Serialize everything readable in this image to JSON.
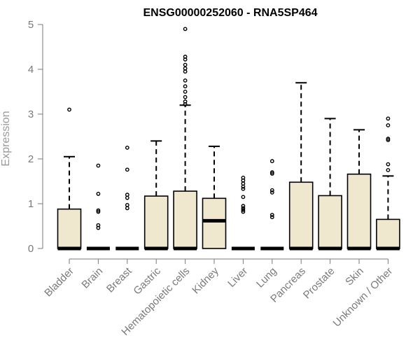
{
  "chart_data": {
    "type": "box",
    "title": "ENSG00000252060 - RNA5SP464",
    "xlabel": "",
    "ylabel": "Expression",
    "ylim": [
      0,
      5
    ],
    "yticks": [
      0,
      1,
      2,
      3,
      4,
      5
    ],
    "categories": [
      "Bladder",
      "Brain",
      "Breast",
      "Gastric",
      "Hematopoietic cells",
      "Kidney",
      "Liver",
      "Lung",
      "Pancreas",
      "Prostate",
      "Skin",
      "Unknown / Other"
    ],
    "boxes": [
      {
        "category": "Bladder",
        "q1": 0,
        "median": 0,
        "q3": 0.88,
        "whisker_low": 0,
        "whisker_high": 2.05,
        "outliers": [
          3.1
        ]
      },
      {
        "category": "Brain",
        "q1": 0,
        "median": 0,
        "q3": 0,
        "whisker_low": 0,
        "whisker_high": 0,
        "outliers": [
          1.85,
          1.22,
          0.85,
          0.82,
          0.52,
          0.46
        ]
      },
      {
        "category": "Breast",
        "q1": 0,
        "median": 0,
        "q3": 0,
        "whisker_low": 0,
        "whisker_high": 0,
        "outliers": [
          2.25,
          1.76,
          1.2,
          1.13,
          0.97,
          0.9
        ]
      },
      {
        "category": "Gastric",
        "q1": 0,
        "median": 0,
        "q3": 1.17,
        "whisker_low": 0,
        "whisker_high": 2.4,
        "outliers": []
      },
      {
        "category": "Hematopoietic cells",
        "q1": 0,
        "median": 0,
        "q3": 1.28,
        "whisker_low": 0,
        "whisker_high": 3.2,
        "outliers": [
          4.9,
          4.28,
          4.22,
          4.1,
          4.02,
          3.95,
          3.75,
          3.62,
          3.5,
          3.38,
          3.28,
          3.22
        ]
      },
      {
        "category": "Kidney",
        "q1": 0,
        "median": 0.62,
        "q3": 1.12,
        "whisker_low": 0,
        "whisker_high": 2.28,
        "outliers": []
      },
      {
        "category": "Liver",
        "q1": 0,
        "median": 0,
        "q3": 0,
        "whisker_low": 0,
        "whisker_high": 0,
        "outliers": [
          1.58,
          1.52,
          1.45,
          1.38,
          1.33,
          1.15,
          0.95,
          0.9,
          0.86,
          0.82
        ]
      },
      {
        "category": "Lung",
        "q1": 0,
        "median": 0,
        "q3": 0,
        "whisker_low": 0,
        "whisker_high": 0,
        "outliers": [
          1.95,
          1.7,
          1.67,
          1.3,
          1.25,
          0.75,
          0.7
        ]
      },
      {
        "category": "Pancreas",
        "q1": 0,
        "median": 0,
        "q3": 1.48,
        "whisker_low": 0,
        "whisker_high": 3.7,
        "outliers": []
      },
      {
        "category": "Prostate",
        "q1": 0,
        "median": 0,
        "q3": 1.18,
        "whisker_low": 0,
        "whisker_high": 2.9,
        "outliers": []
      },
      {
        "category": "Skin",
        "q1": 0,
        "median": 0,
        "q3": 1.66,
        "whisker_low": 0,
        "whisker_high": 2.65,
        "outliers": []
      },
      {
        "category": "Unknown / Other",
        "q1": 0,
        "median": 0,
        "q3": 0.65,
        "whisker_low": 0,
        "whisker_high": 1.62,
        "outliers": [
          2.9,
          2.75,
          2.45,
          2.42,
          1.88,
          1.75
        ]
      }
    ],
    "grid": false,
    "legend": "none"
  },
  "colors": {
    "box_fill": "#efe8cf",
    "box_stroke": "#000000",
    "axis": "#7a7a7a",
    "title": "#000000",
    "label": "#9a9a9a"
  }
}
